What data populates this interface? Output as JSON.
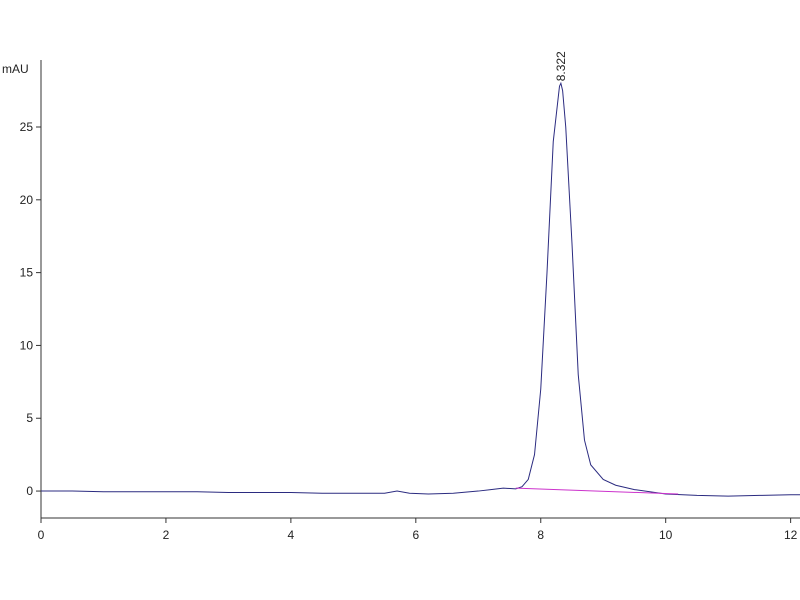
{
  "chart_data": {
    "type": "line",
    "y_label": "mAU",
    "xlim": [
      0,
      12.15
    ],
    "ylim": [
      -1.85,
      29.6
    ],
    "xticks": [
      0,
      2,
      4,
      6,
      8,
      10,
      12
    ],
    "yticks": [
      0,
      5,
      10,
      15,
      20,
      25
    ],
    "series": [
      {
        "color": "#2b2b80",
        "x": [
          0,
          0.5,
          1,
          1.5,
          2,
          2.5,
          3,
          3.5,
          4,
          4.5,
          5,
          5.5,
          5.7,
          5.9,
          6.2,
          6.6,
          7,
          7.2,
          7.4,
          7.6,
          7.7,
          7.8,
          7.9,
          8.0,
          8.1,
          8.2,
          8.3,
          8.322,
          8.35,
          8.4,
          8.5,
          8.6,
          8.7,
          8.8,
          9.0,
          9.2,
          9.5,
          10,
          10.5,
          11,
          11.5,
          12,
          12.15
        ],
        "values": [
          0,
          0,
          -0.05,
          -0.05,
          -0.05,
          -0.05,
          -0.1,
          -0.1,
          -0.1,
          -0.15,
          -0.15,
          -0.15,
          0,
          -0.15,
          -0.2,
          -0.15,
          0,
          0.1,
          0.2,
          0.15,
          0.3,
          0.8,
          2.5,
          7,
          15,
          24,
          27.8,
          28,
          27.5,
          25,
          17,
          8,
          3.5,
          1.8,
          0.8,
          0.4,
          0.1,
          -0.2,
          -0.3,
          -0.35,
          -0.3,
          -0.25,
          -0.25
        ]
      },
      {
        "color": "#cc33cc",
        "x": [
          7.6,
          10.2
        ],
        "values": [
          0.2,
          -0.2
        ]
      }
    ],
    "annotations": [
      {
        "x": 8.322,
        "y": 28,
        "text": "8.322"
      }
    ]
  }
}
